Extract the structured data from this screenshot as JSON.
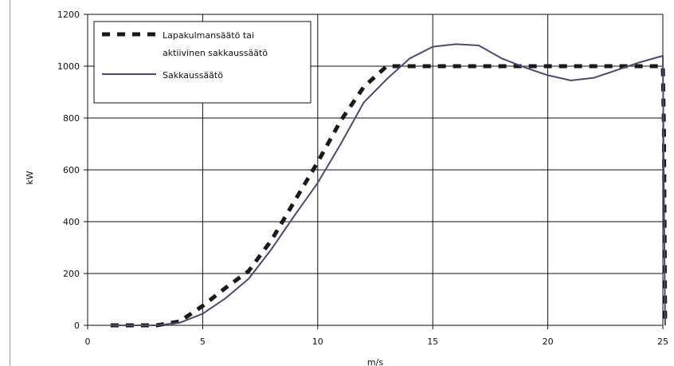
{
  "chart_data": {
    "type": "line",
    "title": "",
    "xlabel": "m/s",
    "ylabel": "kW",
    "xlim": [
      0,
      25
    ],
    "ylim": [
      0,
      1200
    ],
    "x_ticks": [
      0,
      5,
      10,
      15,
      20,
      25
    ],
    "y_ticks": [
      0,
      200,
      400,
      600,
      800,
      1000,
      1200
    ],
    "grid": true,
    "legend_position": "top-left",
    "series": [
      {
        "name": "Lapakulmansäätö tai aktiivinen sakkaussäätö",
        "style": "dashed",
        "color": "#1a1a1a",
        "points": [
          [
            1,
            0
          ],
          [
            2,
            0
          ],
          [
            3,
            0
          ],
          [
            4,
            15
          ],
          [
            5,
            75
          ],
          [
            6,
            145
          ],
          [
            7,
            210
          ],
          [
            8,
            330
          ],
          [
            9,
            480
          ],
          [
            10,
            630
          ],
          [
            11,
            790
          ],
          [
            12,
            920
          ],
          [
            13,
            1000
          ],
          [
            14,
            1000
          ],
          [
            15,
            1000
          ],
          [
            16,
            1000
          ],
          [
            17,
            1000
          ],
          [
            18,
            1000
          ],
          [
            19,
            1000
          ],
          [
            20,
            1000
          ],
          [
            21,
            1000
          ],
          [
            22,
            1000
          ],
          [
            23,
            1000
          ],
          [
            24,
            1000
          ],
          [
            25,
            1000
          ],
          [
            25.05,
            750
          ],
          [
            25.1,
            0
          ]
        ]
      },
      {
        "name": "Sakkaussäätö",
        "style": "solid",
        "color": "#4a4a72",
        "points": [
          [
            1,
            0
          ],
          [
            2,
            0
          ],
          [
            3,
            0
          ],
          [
            4,
            10
          ],
          [
            5,
            45
          ],
          [
            6,
            105
          ],
          [
            7,
            180
          ],
          [
            8,
            295
          ],
          [
            9,
            425
          ],
          [
            10,
            550
          ],
          [
            11,
            700
          ],
          [
            12,
            860
          ],
          [
            13,
            950
          ],
          [
            14,
            1030
          ],
          [
            15,
            1075
          ],
          [
            16,
            1085
          ],
          [
            17,
            1080
          ],
          [
            18,
            1030
          ],
          [
            19,
            995
          ],
          [
            20,
            965
          ],
          [
            21,
            945
          ],
          [
            22,
            955
          ],
          [
            23,
            985
          ],
          [
            24,
            1015
          ],
          [
            25,
            1040
          ],
          [
            25.05,
            500
          ],
          [
            25.1,
            0
          ]
        ]
      }
    ]
  }
}
